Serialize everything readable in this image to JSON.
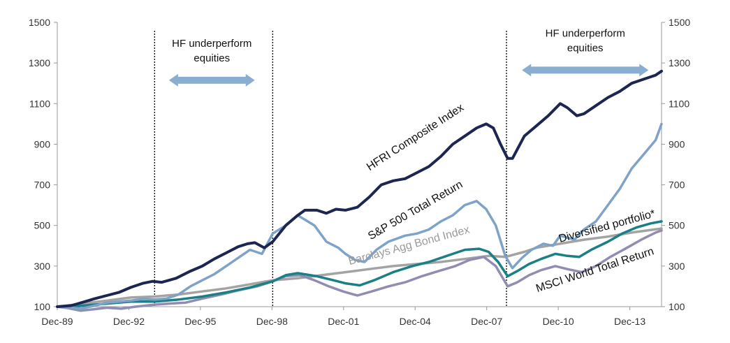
{
  "colors": {
    "hfri": "#1c2650",
    "sp500": "#7fa3c8",
    "barclays": "#a3a3a3",
    "diversified": "#1a7f86",
    "msci": "#8f8db2",
    "arrow": "#8aaed0",
    "divider": "#111111",
    "axis": "#999999"
  },
  "chart_data": {
    "type": "line",
    "x_tick_labels": [
      "Dec-89",
      "Dec-92",
      "Dec-95",
      "Dec-98",
      "Dec-01",
      "Dec-04",
      "Dec-07",
      "Dec-10",
      "Dec-13"
    ],
    "x_tick_years": [
      1989.92,
      1992.92,
      1995.92,
      1998.92,
      2001.92,
      2004.92,
      2007.92,
      2010.92,
      2013.92
    ],
    "xlim": [
      1989.92,
      2015.25
    ],
    "ylim": [
      100,
      1500
    ],
    "y_ticks": [
      100,
      300,
      500,
      700,
      900,
      1100,
      1300,
      1500
    ],
    "y_tick_labels": [
      "100",
      "300",
      "500",
      "700",
      "900",
      "1100",
      "1300",
      "1500"
    ],
    "grid": false,
    "dividers": [
      1994.0,
      1998.95,
      2008.75
    ],
    "annotations": [
      {
        "lines": [
          "HF underperform",
          "equities"
        ],
        "from": 1994.6,
        "to": 1998.2,
        "y_arrow": 1215
      },
      {
        "lines": [
          "HF underperform",
          "equities"
        ],
        "from": 2009.4,
        "to": 2014.7,
        "y_arrow": 1265
      }
    ],
    "series": [
      {
        "name": "HFRI Composite Index",
        "color_key": "hfri",
        "label_angle": -33,
        "x": [
          1989.92,
          1990.5,
          1991.0,
          1991.5,
          1992.0,
          1992.5,
          1993.0,
          1993.5,
          1993.92,
          1994.3,
          1994.9,
          1995.5,
          1996.0,
          1996.5,
          1997.0,
          1997.5,
          1997.9,
          1998.2,
          1998.6,
          1998.95,
          1999.5,
          2000.0,
          2000.3,
          2000.8,
          2001.2,
          2001.6,
          2002.0,
          2002.5,
          2003.0,
          2003.5,
          2004.0,
          2004.5,
          2005.0,
          2005.5,
          2006.0,
          2006.5,
          2007.0,
          2007.5,
          2007.9,
          2008.2,
          2008.5,
          2008.8,
          2009.0,
          2009.5,
          2010.0,
          2010.5,
          2011.0,
          2011.3,
          2011.7,
          2012.0,
          2012.5,
          2013.0,
          2013.5,
          2014.0,
          2014.5,
          2015.0,
          2015.25
        ],
        "y": [
          100,
          105,
          122,
          140,
          155,
          170,
          195,
          215,
          225,
          220,
          240,
          275,
          300,
          335,
          365,
          395,
          410,
          415,
          390,
          420,
          500,
          550,
          575,
          575,
          560,
          580,
          575,
          590,
          640,
          700,
          720,
          730,
          760,
          790,
          840,
          900,
          940,
          980,
          1000,
          980,
          900,
          830,
          830,
          940,
          990,
          1040,
          1100,
          1080,
          1040,
          1050,
          1090,
          1130,
          1160,
          1200,
          1220,
          1240,
          1260
        ]
      },
      {
        "name": "S&P 500 Total Return",
        "color_key": "sp500",
        "label_angle": -30,
        "x": [
          1989.92,
          1990.5,
          1990.9,
          1991.5,
          1992.0,
          1992.5,
          1993.0,
          1993.5,
          1994.0,
          1994.5,
          1995.0,
          1995.5,
          1996.0,
          1996.5,
          1997.0,
          1997.5,
          1998.0,
          1998.5,
          1998.95,
          1999.5,
          2000.0,
          2000.7,
          2001.2,
          2001.7,
          2002.0,
          2002.4,
          2002.8,
          2003.3,
          2003.8,
          2004.5,
          2005.0,
          2005.5,
          2006.0,
          2006.5,
          2007.0,
          2007.5,
          2007.9,
          2008.3,
          2008.7,
          2009.0,
          2009.4,
          2009.8,
          2010.3,
          2010.7,
          2011.0,
          2011.6,
          2012.0,
          2012.5,
          2013.0,
          2013.5,
          2014.0,
          2014.5,
          2015.0,
          2015.25
        ],
        "y": [
          100,
          95,
          90,
          105,
          120,
          125,
          130,
          138,
          135,
          140,
          160,
          200,
          230,
          260,
          300,
          340,
          380,
          360,
          460,
          500,
          550,
          500,
          420,
          390,
          360,
          330,
          320,
          380,
          420,
          450,
          460,
          480,
          520,
          550,
          600,
          620,
          580,
          500,
          350,
          290,
          340,
          380,
          410,
          400,
          450,
          430,
          480,
          520,
          600,
          680,
          780,
          850,
          920,
          1000
        ]
      },
      {
        "name": "Barclays Agg Bond Index",
        "color_key": "barclays",
        "label_angle": -15,
        "x": [
          1989.92,
          1991.0,
          1992.0,
          1993.0,
          1994.0,
          1995.0,
          1996.0,
          1997.0,
          1998.0,
          1998.95,
          2000.0,
          2001.0,
          2002.0,
          2003.0,
          2004.0,
          2005.0,
          2006.0,
          2007.0,
          2008.0,
          2008.7,
          2009.5,
          2010.0,
          2011.0,
          2012.0,
          2013.0,
          2014.0,
          2015.25
        ],
        "y": [
          100,
          115,
          130,
          145,
          150,
          160,
          175,
          190,
          210,
          230,
          240,
          255,
          270,
          285,
          300,
          310,
          320,
          335,
          350,
          345,
          370,
          390,
          410,
          430,
          445,
          465,
          485
        ]
      },
      {
        "name": "Diversified portfolio*",
        "color_key": "diversified",
        "label_angle": -15,
        "x": [
          1989.92,
          1990.5,
          1991.0,
          1992.0,
          1993.0,
          1994.0,
          1995.0,
          1996.0,
          1997.0,
          1998.0,
          1998.95,
          1999.5,
          2000.0,
          2000.8,
          2001.5,
          2002.0,
          2002.6,
          2003.2,
          2004.0,
          2004.8,
          2005.5,
          2006.0,
          2006.5,
          2007.0,
          2007.6,
          2008.0,
          2008.4,
          2008.8,
          2009.2,
          2009.7,
          2010.2,
          2010.8,
          2011.3,
          2011.8,
          2012.3,
          2013.0,
          2013.6,
          2014.2,
          2014.8,
          2015.25
        ],
        "y": [
          100,
          98,
          105,
          115,
          125,
          125,
          135,
          150,
          170,
          195,
          225,
          255,
          265,
          250,
          230,
          215,
          205,
          230,
          270,
          300,
          320,
          340,
          360,
          380,
          385,
          370,
          320,
          250,
          275,
          310,
          335,
          360,
          350,
          345,
          380,
          420,
          460,
          490,
          510,
          520
        ]
      },
      {
        "name": "MSCI World Total Return",
        "color_key": "msci",
        "label_angle": -18,
        "x": [
          1989.92,
          1990.4,
          1990.9,
          1991.5,
          1992.0,
          1992.6,
          1993.2,
          1994.0,
          1994.6,
          1995.3,
          1996.0,
          1996.8,
          1997.5,
          1998.3,
          1998.95,
          1999.5,
          2000.1,
          2000.7,
          2001.3,
          2001.9,
          2002.5,
          2003.1,
          2003.8,
          2004.5,
          2005.2,
          2005.9,
          2006.6,
          2007.2,
          2007.8,
          2008.3,
          2008.8,
          2009.2,
          2009.7,
          2010.2,
          2010.8,
          2011.3,
          2011.9,
          2012.5,
          2013.1,
          2013.8,
          2014.4,
          2015.0,
          2015.25
        ],
        "y": [
          100,
          92,
          80,
          88,
          95,
          90,
          100,
          110,
          115,
          120,
          140,
          160,
          180,
          200,
          225,
          250,
          255,
          230,
          200,
          175,
          155,
          175,
          200,
          220,
          250,
          275,
          300,
          330,
          345,
          300,
          200,
          220,
          255,
          280,
          300,
          285,
          270,
          300,
          345,
          390,
          430,
          465,
          475
        ]
      }
    ],
    "series_labels": [
      {
        "series": 0,
        "x": 2005.0,
        "y": 920,
        "angle": -33
      },
      {
        "series": 1,
        "x": 2005.0,
        "y": 560,
        "angle": -30
      },
      {
        "series": 2,
        "x": 2004.7,
        "y": 385,
        "angle": -15
      },
      {
        "series": 3,
        "x": 2013.0,
        "y": 480,
        "angle": -15
      },
      {
        "series": 4,
        "x": 2012.5,
        "y": 265,
        "angle": -18
      }
    ]
  }
}
